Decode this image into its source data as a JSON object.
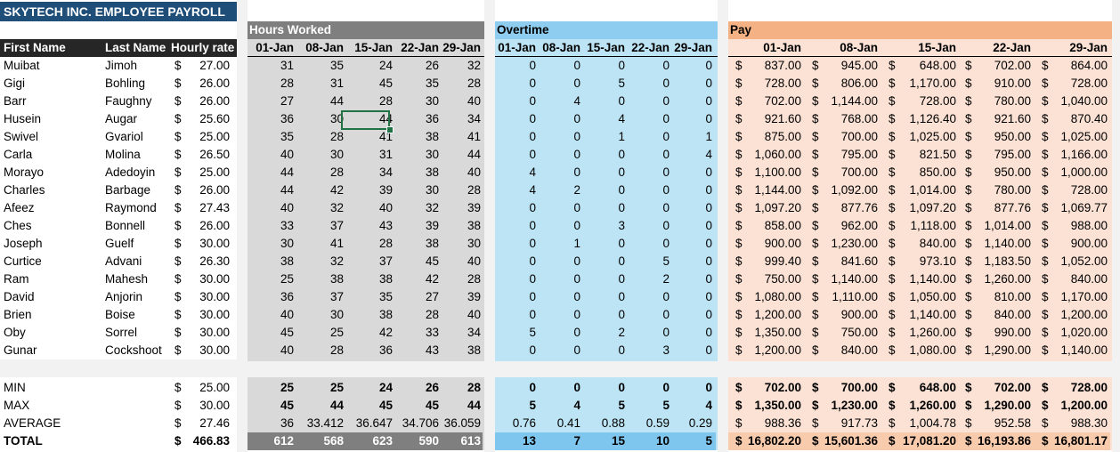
{
  "title": "SKYTECH INC. EMPLOYEE PAYROLL",
  "columns": {
    "first_name": "First Name",
    "last_name": "Last Name",
    "hourly_rate": "Hourly rate"
  },
  "sections": {
    "hours": "Hours Worked",
    "overtime": "Overtime",
    "pay": "Pay"
  },
  "dates": [
    "01-Jan",
    "08-Jan",
    "15-Jan",
    "22-Jan",
    "29-Jan"
  ],
  "currency": "$",
  "employees": [
    {
      "first": "Muibat",
      "last": "Jimoh",
      "rate": "27.00",
      "hours": [
        "31",
        "35",
        "24",
        "26",
        "32"
      ],
      "ot": [
        "0",
        "0",
        "0",
        "0",
        "0"
      ],
      "pay": [
        "837.00",
        "945.00",
        "648.00",
        "702.00",
        "864.00"
      ]
    },
    {
      "first": "Gigi",
      "last": "Bohling",
      "rate": "26.00",
      "hours": [
        "28",
        "31",
        "45",
        "35",
        "28"
      ],
      "ot": [
        "0",
        "0",
        "5",
        "0",
        "0"
      ],
      "pay": [
        "728.00",
        "806.00",
        "1,170.00",
        "910.00",
        "728.00"
      ]
    },
    {
      "first": "Barr",
      "last": "Faughny",
      "rate": "26.00",
      "hours": [
        "27",
        "44",
        "28",
        "30",
        "40"
      ],
      "ot": [
        "0",
        "4",
        "0",
        "0",
        "0"
      ],
      "pay": [
        "702.00",
        "1,144.00",
        "728.00",
        "780.00",
        "1,040.00"
      ]
    },
    {
      "first": "Husein",
      "last": "Augar",
      "rate": "25.60",
      "hours": [
        "36",
        "30",
        "44",
        "36",
        "34"
      ],
      "ot": [
        "0",
        "0",
        "4",
        "0",
        "0"
      ],
      "pay": [
        "921.60",
        "768.00",
        "1,126.40",
        "921.60",
        "870.40"
      ]
    },
    {
      "first": "Swivel",
      "last": "Gvariol",
      "rate": "25.00",
      "hours": [
        "35",
        "28",
        "41",
        "38",
        "41"
      ],
      "ot": [
        "0",
        "0",
        "1",
        "0",
        "1"
      ],
      "pay": [
        "875.00",
        "700.00",
        "1,025.00",
        "950.00",
        "1,025.00"
      ]
    },
    {
      "first": "Carla",
      "last": "Molina",
      "rate": "26.50",
      "hours": [
        "40",
        "30",
        "31",
        "30",
        "44"
      ],
      "ot": [
        "0",
        "0",
        "0",
        "0",
        "4"
      ],
      "pay": [
        "1,060.00",
        "795.00",
        "821.50",
        "795.00",
        "1,166.00"
      ]
    },
    {
      "first": "Morayo",
      "last": "Adedoyin",
      "rate": "25.00",
      "hours": [
        "44",
        "28",
        "34",
        "38",
        "40"
      ],
      "ot": [
        "4",
        "0",
        "0",
        "0",
        "0"
      ],
      "pay": [
        "1,100.00",
        "700.00",
        "850.00",
        "950.00",
        "1,000.00"
      ]
    },
    {
      "first": "Charles",
      "last": "Barbage",
      "rate": "26.00",
      "hours": [
        "44",
        "42",
        "39",
        "30",
        "28"
      ],
      "ot": [
        "4",
        "2",
        "0",
        "0",
        "0"
      ],
      "pay": [
        "1,144.00",
        "1,092.00",
        "1,014.00",
        "780.00",
        "728.00"
      ]
    },
    {
      "first": "Afeez",
      "last": "Raymond",
      "rate": "27.43",
      "hours": [
        "40",
        "32",
        "40",
        "32",
        "39"
      ],
      "ot": [
        "0",
        "0",
        "0",
        "0",
        "0"
      ],
      "pay": [
        "1,097.20",
        "877.76",
        "1,097.20",
        "877.76",
        "1,069.77"
      ]
    },
    {
      "first": "Ches",
      "last": "Bonnell",
      "rate": "26.00",
      "hours": [
        "33",
        "37",
        "43",
        "39",
        "38"
      ],
      "ot": [
        "0",
        "0",
        "3",
        "0",
        "0"
      ],
      "pay": [
        "858.00",
        "962.00",
        "1,118.00",
        "1,014.00",
        "988.00"
      ]
    },
    {
      "first": "Joseph",
      "last": "Guelf",
      "rate": "30.00",
      "hours": [
        "30",
        "41",
        "28",
        "38",
        "30"
      ],
      "ot": [
        "0",
        "1",
        "0",
        "0",
        "0"
      ],
      "pay": [
        "900.00",
        "1,230.00",
        "840.00",
        "1,140.00",
        "900.00"
      ]
    },
    {
      "first": "Curtice",
      "last": "Advani",
      "rate": "26.30",
      "hours": [
        "38",
        "32",
        "37",
        "45",
        "40"
      ],
      "ot": [
        "0",
        "0",
        "0",
        "5",
        "0"
      ],
      "pay": [
        "999.40",
        "841.60",
        "973.10",
        "1,183.50",
        "1,052.00"
      ]
    },
    {
      "first": "Ram",
      "last": "Mahesh",
      "rate": "30.00",
      "hours": [
        "25",
        "38",
        "38",
        "42",
        "28"
      ],
      "ot": [
        "0",
        "0",
        "0",
        "2",
        "0"
      ],
      "pay": [
        "750.00",
        "1,140.00",
        "1,140.00",
        "1,260.00",
        "840.00"
      ]
    },
    {
      "first": "David",
      "last": "Anjorin",
      "rate": "30.00",
      "hours": [
        "36",
        "37",
        "35",
        "27",
        "39"
      ],
      "ot": [
        "0",
        "0",
        "0",
        "0",
        "0"
      ],
      "pay": [
        "1,080.00",
        "1,110.00",
        "1,050.00",
        "810.00",
        "1,170.00"
      ]
    },
    {
      "first": "Brien",
      "last": "Boise",
      "rate": "30.00",
      "hours": [
        "40",
        "30",
        "38",
        "28",
        "40"
      ],
      "ot": [
        "0",
        "0",
        "0",
        "0",
        "0"
      ],
      "pay": [
        "1,200.00",
        "900.00",
        "1,140.00",
        "840.00",
        "1,200.00"
      ]
    },
    {
      "first": "Oby",
      "last": "Sorrel",
      "rate": "30.00",
      "hours": [
        "45",
        "25",
        "42",
        "33",
        "34"
      ],
      "ot": [
        "5",
        "0",
        "2",
        "0",
        "0"
      ],
      "pay": [
        "1,350.00",
        "750.00",
        "1,260.00",
        "990.00",
        "1,020.00"
      ]
    },
    {
      "first": "Gunar",
      "last": "Cockshoot",
      "rate": "30.00",
      "hours": [
        "40",
        "28",
        "36",
        "43",
        "38"
      ],
      "ot": [
        "0",
        "0",
        "0",
        "3",
        "0"
      ],
      "pay": [
        "1,200.00",
        "840.00",
        "1,080.00",
        "1,290.00",
        "1,140.00"
      ]
    }
  ],
  "summary": [
    {
      "label": "MIN",
      "rate": "25.00",
      "hours": [
        "25",
        "25",
        "24",
        "26",
        "28"
      ],
      "ot": [
        "0",
        "0",
        "0",
        "0",
        "0"
      ],
      "pay": [
        "702.00",
        "700.00",
        "648.00",
        "702.00",
        "728.00"
      ]
    },
    {
      "label": "MAX",
      "rate": "30.00",
      "hours": [
        "45",
        "44",
        "45",
        "45",
        "44"
      ],
      "ot": [
        "5",
        "4",
        "5",
        "5",
        "4"
      ],
      "pay": [
        "1,350.00",
        "1,230.00",
        "1,260.00",
        "1,290.00",
        "1,200.00"
      ]
    },
    {
      "label": "AVERAGE",
      "rate": "27.46",
      "hours": [
        "36",
        "33.412",
        "36.647",
        "34.706",
        "36.059"
      ],
      "ot": [
        "0.76",
        "0.41",
        "0.88",
        "0.59",
        "0.29"
      ],
      "pay": [
        "988.36",
        "917.73",
        "1,004.78",
        "952.58",
        "988.30"
      ]
    },
    {
      "label": "TOTAL",
      "rate": "466.83",
      "hours": [
        "612",
        "568",
        "623",
        "590",
        "613"
      ],
      "ot": [
        "13",
        "7",
        "15",
        "10",
        "5"
      ],
      "pay": [
        "16,802.20",
        "15,601.36",
        "17,081.20",
        "16,193.86",
        "16,801.17"
      ]
    }
  ],
  "colors": {
    "title_bg": "#1f4e79",
    "title_fg": "#ffffff",
    "header_bg": "#262626",
    "hours_bg": "#d9d9d9",
    "hours_hdr": "#7f7f7f",
    "hours_total": "#a6a6a6",
    "ot_bg": "#bde4f4",
    "ot_hdr": "#8ecdf0",
    "ot_total": "#7fc6ee",
    "pay_bg": "#fbe2d5",
    "pay_hdr": "#f4b183",
    "pay_total": "#f8cbad",
    "selection": "#217346"
  }
}
